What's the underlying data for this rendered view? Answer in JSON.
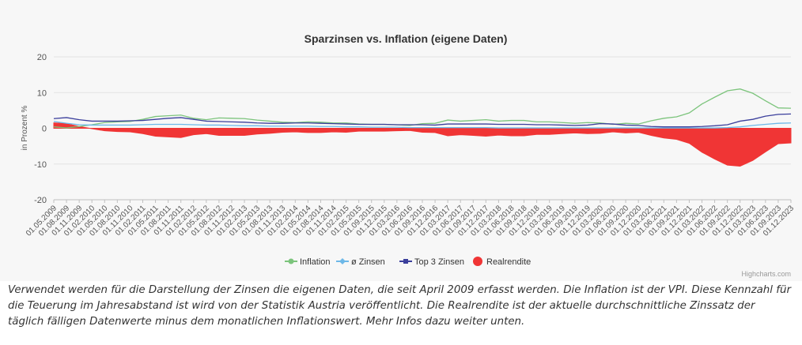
{
  "caption": "Verwendet werden für die Darstellung der Zinsen die eigenen Daten, die seit April 2009 erfasst werden. Die Inflation ist der VPI. Diese Kennzahl für die Teuerung im Jahresabstand ist wird von der Statistik Austria veröffentlicht. Die Realrendite ist der aktuelle durchschnittliche Zinssatz der täglich fälligen Datenwerte minus dem monatlichen Inflationswert. Mehr Infos dazu weiter unten.",
  "credits": "Highcharts.com",
  "chart_data": {
    "type": "line",
    "title": "Sparzinsen vs. Inflation (eigene Daten)",
    "ylabel": "in Prozent %",
    "xlabel": "",
    "ylim": [
      -20,
      20
    ],
    "yticks": [
      20,
      10,
      0,
      -10,
      -20
    ],
    "grid": true,
    "legend_position": "bottom-center",
    "x_tick_labels": [
      "01.05.2009",
      "01.08.2009",
      "01.11.2009",
      "01.02.2010",
      "01.05.2010",
      "01.08.2010",
      "01.11.2010",
      "01.02.2011",
      "01.05.2011",
      "01.08.2011",
      "01.11.2011",
      "01.02.2012",
      "01.05.2012",
      "01.08.2012",
      "01.11.2012",
      "01.02.2013",
      "01.05.2013",
      "01.08.2013",
      "01.11.2013",
      "01.02.2014",
      "01.05.2014",
      "01.08.2014",
      "01.11.2014",
      "01.02.2015",
      "01.05.2015",
      "01.09.2015",
      "01.12.2015",
      "01.03.2016",
      "01.06.2016",
      "01.09.2016",
      "01.12.2016",
      "01.03.2017",
      "01.06.2017",
      "01.09.2017",
      "01.12.2017",
      "01.03.2018",
      "01.06.2018",
      "01.09.2018",
      "01.12.2018",
      "01.03.2019",
      "01.06.2019",
      "01.09.2019",
      "01.12.2019",
      "01.03.2020",
      "01.06.2020",
      "01.09.2020",
      "01.12.2020",
      "01.03.2021",
      "01.06.2021",
      "01.09.2021",
      "01.12.2021",
      "01.03.2022",
      "01.06.2022",
      "01.09.2022",
      "01.12.2022",
      "01.03.2023",
      "01.06.2023",
      "01.09.2023",
      "01.12.2023"
    ],
    "series": [
      {
        "name": "Inflation",
        "color": "#7cc47c",
        "type": "line",
        "marker": "circle",
        "values": [
          0.4,
          0.1,
          0.5,
          1.0,
          1.6,
          1.8,
          1.9,
          2.5,
          3.3,
          3.5,
          3.7,
          2.8,
          2.4,
          2.9,
          2.8,
          2.7,
          2.3,
          2.0,
          1.7,
          1.6,
          1.8,
          1.7,
          1.5,
          1.5,
          1.2,
          1.1,
          1.1,
          1.0,
          0.8,
          1.3,
          1.4,
          2.3,
          2.0,
          2.2,
          2.4,
          2.0,
          2.2,
          2.2,
          1.8,
          1.8,
          1.6,
          1.4,
          1.6,
          1.5,
          1.1,
          1.4,
          1.2,
          2.1,
          2.8,
          3.2,
          4.3,
          6.8,
          8.7,
          10.5,
          11.0,
          9.8,
          7.7,
          5.7,
          5.6
        ]
      },
      {
        "name": "ø Zinsen",
        "color": "#6db8e8",
        "type": "line",
        "marker": "diamond",
        "values": [
          1.9,
          1.4,
          1.0,
          0.9,
          0.9,
          0.9,
          0.9,
          1.0,
          1.1,
          1.1,
          1.1,
          1.0,
          0.9,
          0.9,
          0.8,
          0.7,
          0.7,
          0.6,
          0.6,
          0.6,
          0.6,
          0.5,
          0.5,
          0.4,
          0.4,
          0.3,
          0.3,
          0.3,
          0.2,
          0.2,
          0.2,
          0.2,
          0.2,
          0.2,
          0.2,
          0.1,
          0.1,
          0.1,
          0.1,
          0.1,
          0.1,
          0.1,
          0.1,
          0.1,
          0.1,
          0.1,
          0.1,
          0.1,
          0.1,
          0.1,
          0.1,
          0.1,
          0.1,
          0.2,
          0.4,
          0.8,
          1.1,
          1.4,
          1.5
        ]
      },
      {
        "name": "Top 3 Zinsen",
        "color": "#3b3f9c",
        "type": "line",
        "marker": "square",
        "values": [
          2.7,
          3.0,
          2.4,
          2.0,
          2.0,
          2.0,
          2.1,
          2.2,
          2.5,
          2.8,
          3.0,
          2.5,
          2.0,
          1.9,
          1.8,
          1.7,
          1.5,
          1.4,
          1.4,
          1.5,
          1.5,
          1.4,
          1.3,
          1.2,
          1.1,
          1.1,
          1.1,
          1.0,
          1.0,
          1.0,
          0.9,
          1.2,
          1.2,
          1.2,
          1.2,
          1.1,
          1.1,
          1.1,
          1.0,
          1.0,
          0.9,
          0.8,
          0.9,
          1.3,
          1.2,
          0.9,
          0.8,
          0.5,
          0.4,
          0.4,
          0.4,
          0.5,
          0.7,
          1.0,
          2.0,
          2.5,
          3.4,
          3.9,
          4.0
        ]
      },
      {
        "name": "Realrendite",
        "color": "#f03535",
        "type": "area",
        "values": [
          1.5,
          1.3,
          0.5,
          -0.1,
          -0.7,
          -0.9,
          -1.0,
          -1.5,
          -2.2,
          -2.4,
          -2.6,
          -1.8,
          -1.5,
          -2.0,
          -2.0,
          -2.0,
          -1.6,
          -1.4,
          -1.1,
          -1.0,
          -1.2,
          -1.2,
          -1.0,
          -1.1,
          -0.8,
          -0.8,
          -0.8,
          -0.7,
          -0.6,
          -1.1,
          -1.2,
          -2.1,
          -1.8,
          -2.0,
          -2.2,
          -1.9,
          -2.1,
          -2.1,
          -1.7,
          -1.7,
          -1.5,
          -1.3,
          -1.5,
          -1.4,
          -1.0,
          -1.3,
          -1.1,
          -2.0,
          -2.7,
          -3.1,
          -4.2,
          -6.7,
          -8.6,
          -10.3,
          -10.6,
          -9.0,
          -6.6,
          -4.3,
          -4.1
        ]
      }
    ]
  }
}
